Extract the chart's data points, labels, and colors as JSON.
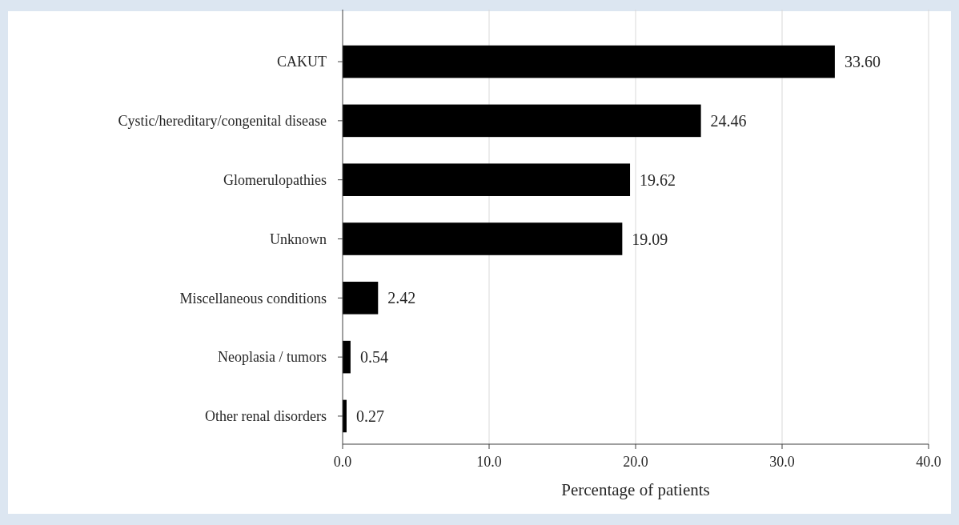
{
  "chart_data": {
    "type": "bar",
    "orientation": "horizontal",
    "xlabel": "Percentage of patients",
    "categories": [
      "CAKUT",
      "Cystic/hereditary/congenital disease",
      "Glomerulopathies",
      "Unknown",
      "Miscellaneous conditions",
      "Neoplasia / tumors",
      "Other renal disorders"
    ],
    "values": [
      33.6,
      24.46,
      19.62,
      19.09,
      2.42,
      0.54,
      0.27
    ],
    "value_labels": [
      "33.60",
      "24.46",
      "19.62",
      "19.09",
      "2.42",
      "0.54",
      "0.27"
    ],
    "color": "#000000",
    "xlim": [
      0,
      40
    ],
    "xticks": [
      {
        "value": 0,
        "label": "0.0"
      },
      {
        "value": 10,
        "label": "10.0"
      },
      {
        "value": 20,
        "label": "20.0"
      },
      {
        "value": 30,
        "label": "30.0"
      },
      {
        "value": 40,
        "label": "40.0"
      }
    ],
    "grid": "x"
  }
}
